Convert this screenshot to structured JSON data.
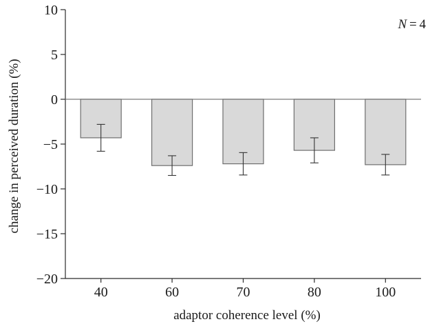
{
  "chart_data": {
    "type": "bar",
    "categories": [
      "40",
      "60",
      "70",
      "80",
      "100"
    ],
    "values": [
      -4.3,
      -7.4,
      -7.2,
      -5.7,
      -7.3
    ],
    "error": [
      1.5,
      1.1,
      1.25,
      1.4,
      1.15
    ],
    "xlabel": "adaptor coherence level (%)",
    "ylabel": "change in perceived duration (%)",
    "ylim": [
      -20,
      10
    ],
    "yticks": [
      10,
      5,
      0,
      -5,
      -10,
      -15,
      -20
    ],
    "ytick_labels": [
      "10",
      "5",
      "0",
      "−5",
      "−10",
      "−15",
      "−20"
    ],
    "annotation": {
      "italic": "N",
      "rest": " = 4"
    },
    "grid": false,
    "colors": {
      "bar_fill": "#d9d9d9",
      "bar_stroke": "#6e6e6e",
      "axis": "#2a2a2a",
      "zero_line": "#7a7a7a"
    }
  }
}
